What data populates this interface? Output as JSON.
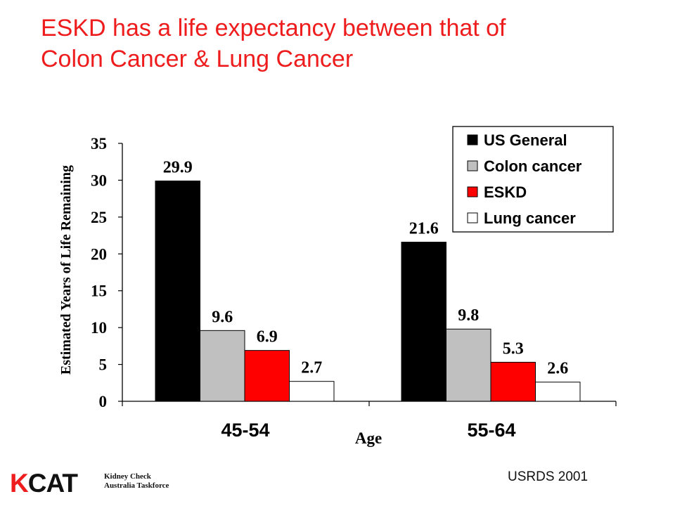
{
  "slide": {
    "title_line1": "ESKD has a life expectancy between that of",
    "title_line2": "Colon Cancer & Lung Cancer",
    "source": "USRDS 2001",
    "logo": {
      "mark_k": "K",
      "mark_rest": "CAT",
      "line1": "Kidney Check",
      "line2": "Australia Taskforce"
    }
  },
  "chart_data": {
    "type": "bar",
    "categories": [
      "45-54",
      "55-64"
    ],
    "series": [
      {
        "name": "US General",
        "values": [
          29.9,
          21.6
        ],
        "color": "#000000"
      },
      {
        "name": "Colon cancer",
        "values": [
          9.6,
          9.8
        ],
        "color": "#c0c0c0"
      },
      {
        "name": "ESKD",
        "values": [
          6.9,
          5.3
        ],
        "color": "#ff0000"
      },
      {
        "name": "Lung cancer",
        "values": [
          2.7,
          2.6
        ],
        "color": "#ffffff"
      }
    ],
    "xlabel": "Age",
    "ylabel": "Estimated Years of Life Remaining",
    "ylim": [
      0,
      35
    ],
    "yticks": [
      0,
      5,
      10,
      15,
      20,
      25,
      30,
      35
    ],
    "data_labels": [
      [
        "29.9",
        "21.6"
      ],
      [
        "9.6",
        "9.8"
      ],
      [
        "6.9",
        "5.3"
      ],
      [
        "2.7",
        "2.6"
      ]
    ],
    "legend_position": "top-right",
    "grid": false
  }
}
